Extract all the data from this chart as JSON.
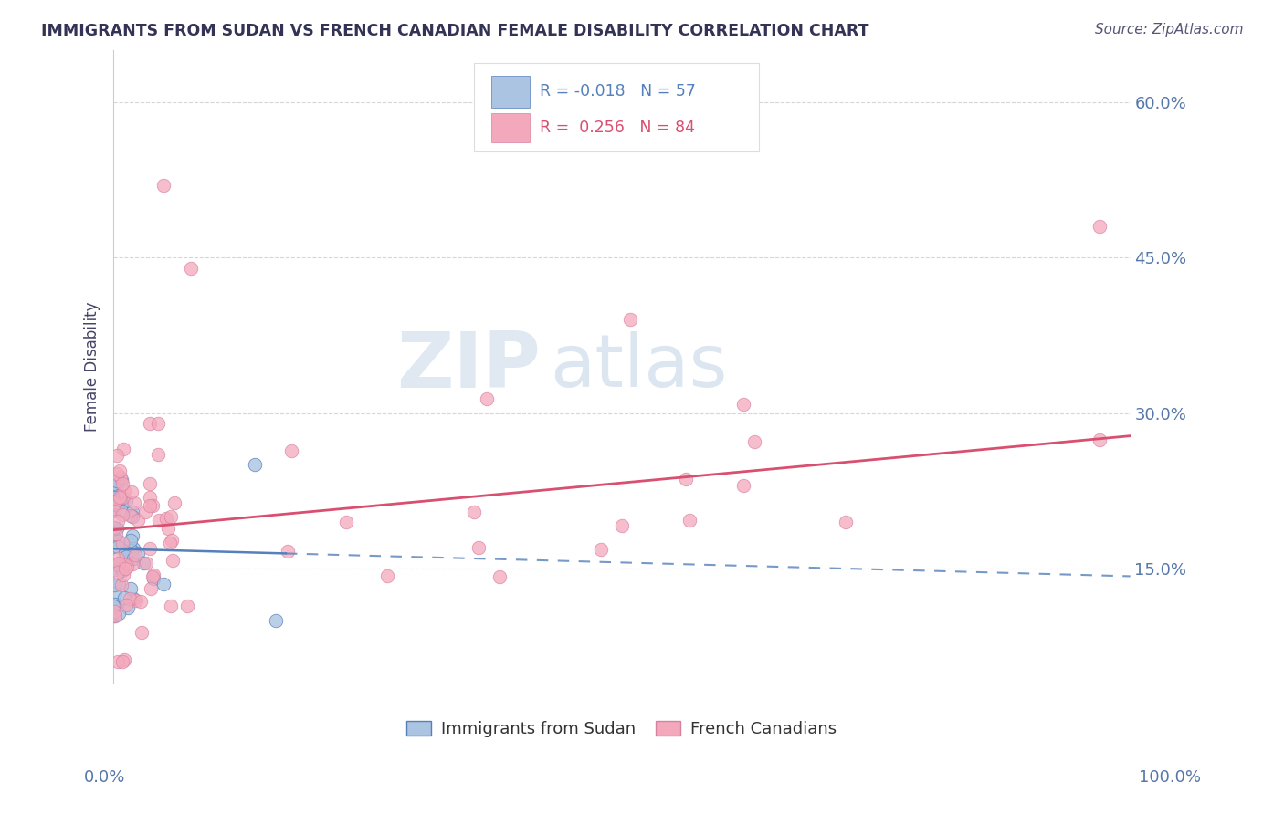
{
  "title": "IMMIGRANTS FROM SUDAN VS FRENCH CANADIAN FEMALE DISABILITY CORRELATION CHART",
  "source": "Source: ZipAtlas.com",
  "ylabel": "Female Disability",
  "watermark_zip": "ZIP",
  "watermark_atlas": "atlas",
  "y_ticks": [
    0.15,
    0.3,
    0.45,
    0.6
  ],
  "y_tick_labels": [
    "15.0%",
    "30.0%",
    "45.0%",
    "60.0%"
  ],
  "xlim": [
    0.0,
    1.0
  ],
  "ylim": [
    0.04,
    0.65
  ],
  "blue_color": "#aac4e2",
  "pink_color": "#f4a8bc",
  "blue_line_color": "#5580bb",
  "pink_line_color": "#d94f70",
  "legend_bottom_blue": "Immigrants from Sudan",
  "legend_bottom_pink": "French Canadians",
  "background_color": "#ffffff",
  "grid_color": "#cccccc",
  "title_color": "#333355",
  "source_color": "#555577",
  "axis_label_color": "#333355",
  "tick_color": "#5577aa"
}
